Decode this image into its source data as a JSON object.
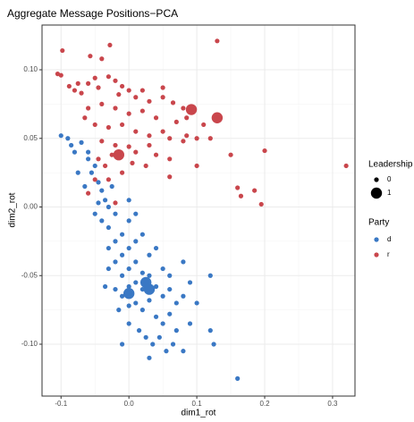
{
  "chart_data": {
    "type": "scatter",
    "title": "Aggregate Message Positions−PCA",
    "x_label": "dim1_rot",
    "y_label": "dim2_rot",
    "xlim": [
      -0.128,
      0.333
    ],
    "ylim": [
      -0.1378,
      0.1326
    ],
    "xticks": [
      -0.1,
      {
        "value": 0,
        "label": "0.0"
      },
      0.1,
      0.2,
      0.3
    ],
    "yticks": [
      {
        "value": -0.1,
        "label": "-0.10"
      },
      -0.05,
      {
        "value": 0,
        "label": "0.00"
      },
      0.05,
      {
        "value": 0.1,
        "label": "0.10"
      }
    ],
    "grid": true,
    "size_title": "Leadership",
    "size_levels": [
      0,
      1
    ],
    "legend_title": "Party",
    "series": [
      {
        "name": "d",
        "color": "#3a78c4",
        "x": [
          -0.1,
          -0.09,
          -0.085,
          -0.08,
          -0.07,
          -0.06,
          -0.055,
          -0.05,
          -0.045,
          -0.04,
          -0.035,
          -0.03,
          -0.05,
          -0.04,
          -0.03,
          -0.02,
          -0.01,
          0.0,
          -0.02,
          -0.03,
          -0.01,
          0.0,
          0.01,
          0.02,
          0.03,
          0.04,
          -0.02,
          -0.03,
          -0.01,
          0.0,
          0.01,
          0.02,
          0.03,
          0.05,
          0.06,
          0.08,
          0.09,
          0.12,
          -0.035,
          -0.02,
          -0.01,
          0.0,
          0.01,
          0.02,
          0.04,
          0.05,
          0.06,
          0.07,
          0.08,
          0.1,
          -0.015,
          0.0,
          0.01,
          0.02,
          0.03,
          0.04,
          0.05,
          0.06,
          0.07,
          0.09,
          0.0,
          0.015,
          0.025,
          0.035,
          0.045,
          0.055,
          0.065,
          0.08,
          0.12,
          0.125,
          -0.01,
          0.03,
          0.16,
          -0.075,
          -0.065,
          -0.045,
          0.0,
          0.01,
          -0.06,
          -0.025,
          0.0,
          0.025,
          0.03
        ],
        "values": [
          0.052,
          0.05,
          0.045,
          0.04,
          0.047,
          0.035,
          0.025,
          0.03,
          0.018,
          0.012,
          0.005,
          0.0,
          -0.005,
          -0.01,
          -0.015,
          -0.005,
          -0.02,
          -0.01,
          -0.025,
          -0.03,
          -0.035,
          -0.03,
          -0.025,
          -0.02,
          -0.035,
          -0.03,
          -0.04,
          -0.045,
          -0.05,
          -0.045,
          -0.04,
          -0.048,
          -0.05,
          -0.045,
          -0.05,
          -0.04,
          -0.055,
          -0.05,
          -0.058,
          -0.06,
          -0.065,
          -0.058,
          -0.055,
          -0.06,
          -0.058,
          -0.065,
          -0.06,
          -0.07,
          -0.065,
          -0.07,
          -0.075,
          -0.072,
          -0.07,
          -0.075,
          -0.068,
          -0.08,
          -0.085,
          -0.078,
          -0.09,
          -0.085,
          -0.085,
          -0.09,
          -0.095,
          -0.1,
          -0.095,
          -0.105,
          -0.1,
          -0.105,
          -0.09,
          -0.1,
          -0.1,
          -0.11,
          -0.125,
          0.025,
          0.015,
          0.003,
          0.005,
          -0.005,
          0.04,
          0.015,
          -0.063,
          -0.055,
          -0.06
        ],
        "leadership": [
          0,
          0,
          0,
          0,
          0,
          0,
          0,
          0,
          0,
          0,
          0,
          0,
          0,
          0,
          0,
          0,
          0,
          0,
          0,
          0,
          0,
          0,
          0,
          0,
          0,
          0,
          0,
          0,
          0,
          0,
          0,
          0,
          0,
          0,
          0,
          0,
          0,
          0,
          0,
          0,
          0,
          0,
          0,
          0,
          0,
          0,
          0,
          0,
          0,
          0,
          0,
          0,
          0,
          0,
          0,
          0,
          0,
          0,
          0,
          0,
          0,
          0,
          0,
          0,
          0,
          0,
          0,
          0,
          0,
          0,
          0,
          0,
          0,
          0,
          0,
          0,
          0,
          0,
          0,
          0,
          1,
          1,
          1
        ]
      },
      {
        "name": "r",
        "color": "#c9464c",
        "x": [
          -0.098,
          -0.105,
          -0.1,
          -0.088,
          -0.075,
          -0.08,
          -0.07,
          -0.06,
          -0.057,
          -0.05,
          -0.045,
          -0.04,
          -0.028,
          -0.03,
          -0.02,
          -0.015,
          -0.01,
          0.0,
          0.01,
          0.02,
          0.03,
          0.05,
          0.05,
          0.065,
          0.08,
          0.13,
          0.085,
          0.07,
          0.04,
          0.02,
          0.0,
          -0.02,
          -0.04,
          -0.06,
          -0.065,
          -0.05,
          -0.03,
          -0.01,
          0.01,
          0.03,
          0.05,
          0.06,
          0.08,
          0.085,
          0.1,
          0.11,
          0.12,
          -0.04,
          -0.02,
          0.0,
          -0.025,
          0.01,
          0.03,
          0.04,
          0.06,
          0.1,
          0.15,
          0.16,
          0.165,
          0.185,
          0.195,
          0.2,
          0.32,
          -0.035,
          -0.045,
          -0.05,
          -0.03,
          -0.01,
          0.005,
          0.025,
          0.06,
          -0.02,
          -0.06,
          0.092,
          0.13,
          -0.015
        ],
        "values": [
          0.114,
          0.097,
          0.096,
          0.088,
          0.09,
          0.085,
          0.083,
          0.09,
          0.11,
          0.094,
          0.087,
          0.108,
          0.118,
          0.095,
          0.092,
          0.082,
          0.088,
          0.085,
          0.08,
          0.085,
          0.077,
          0.087,
          0.08,
          0.076,
          0.072,
          0.121,
          0.065,
          0.062,
          0.065,
          0.07,
          0.068,
          0.072,
          0.075,
          0.072,
          0.065,
          0.06,
          0.058,
          0.06,
          0.055,
          0.052,
          0.055,
          0.05,
          0.048,
          0.052,
          0.05,
          0.06,
          0.05,
          0.048,
          0.045,
          0.044,
          0.038,
          0.04,
          0.045,
          0.038,
          0.035,
          0.03,
          0.038,
          0.014,
          0.008,
          0.012,
          0.002,
          0.041,
          0.03,
          0.03,
          0.035,
          0.02,
          0.02,
          0.025,
          0.032,
          0.03,
          0.022,
          0.003,
          0.01,
          0.071,
          0.065,
          0.038
        ],
        "leadership": [
          0,
          0,
          0,
          0,
          0,
          0,
          0,
          0,
          0,
          0,
          0,
          0,
          0,
          0,
          0,
          0,
          0,
          0,
          0,
          0,
          0,
          0,
          0,
          0,
          0,
          0,
          0,
          0,
          0,
          0,
          0,
          0,
          0,
          0,
          0,
          0,
          0,
          0,
          0,
          0,
          0,
          0,
          0,
          0,
          0,
          0,
          0,
          0,
          0,
          0,
          0,
          0,
          0,
          0,
          0,
          0,
          0,
          0,
          0,
          0,
          0,
          0,
          0,
          0,
          0,
          0,
          0,
          0,
          0,
          0,
          0,
          0,
          0,
          1,
          1,
          1
        ]
      }
    ]
  }
}
